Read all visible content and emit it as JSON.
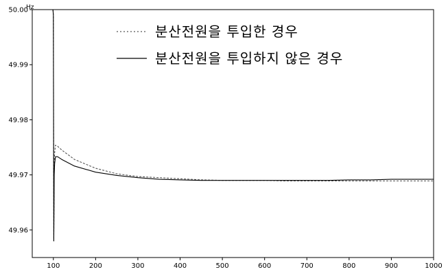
{
  "chart_data": {
    "type": "line",
    "title": "",
    "xlabel": "",
    "ylabel": "Hz",
    "xlim": [
      50,
      1000
    ],
    "ylim": [
      49.955,
      50.0
    ],
    "x_ticks": [
      100,
      200,
      300,
      400,
      500,
      600,
      700,
      800,
      900,
      1000
    ],
    "y_ticks": [
      50.0,
      49.99,
      49.98,
      49.97,
      49.96
    ],
    "y_tick_labels": [
      "50.00",
      "49.99",
      "49.98",
      "49.97",
      "49.96"
    ],
    "grid": false,
    "legend_position": "top-right",
    "series": [
      {
        "name": "분산전원을 투입한 경우",
        "style": "dotted",
        "color": "#555555",
        "x": [
          50,
          99,
          100,
          101,
          102,
          103,
          105,
          110,
          120,
          150,
          200,
          250,
          300,
          350,
          400,
          450,
          500,
          550,
          600,
          650,
          700,
          750,
          800,
          850,
          900,
          950,
          1000
        ],
        "y": [
          50.0,
          50.0,
          49.999,
          49.958,
          49.972,
          49.974,
          49.9754,
          49.9752,
          49.9745,
          49.9728,
          49.9712,
          49.9702,
          49.9697,
          49.9695,
          49.9693,
          49.9691,
          49.969,
          49.969,
          49.969,
          49.9689,
          49.9689,
          49.9689,
          49.9689,
          49.9689,
          49.9689,
          49.9689,
          49.9689
        ]
      },
      {
        "name": "분산전원을 투입하지 않은 경우",
        "style": "solid",
        "color": "#000000",
        "x": [
          50,
          99,
          100,
          101,
          102,
          103,
          105,
          110,
          120,
          150,
          200,
          250,
          300,
          350,
          400,
          450,
          500,
          550,
          600,
          650,
          700,
          750,
          800,
          850,
          900,
          950,
          1000
        ],
        "y": [
          50.0,
          50.0,
          49.999,
          49.958,
          49.97,
          49.972,
          49.9733,
          49.9733,
          49.9728,
          49.9716,
          49.9705,
          49.9699,
          49.9695,
          49.9692,
          49.9691,
          49.969,
          49.969,
          49.969,
          49.969,
          49.969,
          49.969,
          49.969,
          49.9691,
          49.9691,
          49.9692,
          49.9692,
          49.9692
        ]
      }
    ]
  }
}
